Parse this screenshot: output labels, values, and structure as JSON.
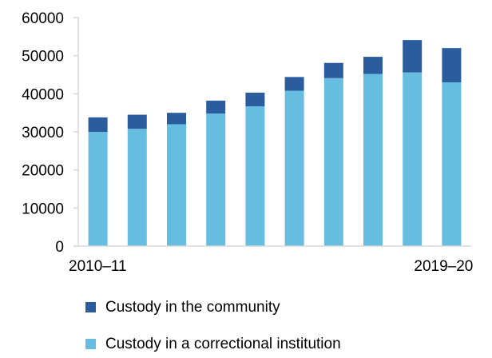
{
  "chart_data": {
    "type": "bar",
    "stacked": true,
    "categories": [
      "2010–11",
      "",
      "",
      "",
      "",
      "",
      "",
      "",
      "",
      "2019–20"
    ],
    "series": [
      {
        "name": "Custody in a correctional institution",
        "color": "#67bde0",
        "values": [
          30000,
          30800,
          32000,
          34800,
          36700,
          40800,
          44100,
          45200,
          45600,
          43000
        ]
      },
      {
        "name": "Custody in the community",
        "color": "#2b5c9e",
        "values": [
          3800,
          3700,
          3000,
          3400,
          3600,
          3600,
          4000,
          4500,
          8500,
          9000
        ]
      }
    ],
    "y_ticks": [
      "0",
      "10000",
      "20000",
      "30000",
      "40000",
      "50000",
      "60000"
    ],
    "ylim": [
      0,
      60000
    ],
    "grid": false,
    "legend": {
      "position": "bottom",
      "order": [
        "Custody in the community",
        "Custody in a correctional institution"
      ]
    },
    "axis_color": "#d9d9d9"
  }
}
